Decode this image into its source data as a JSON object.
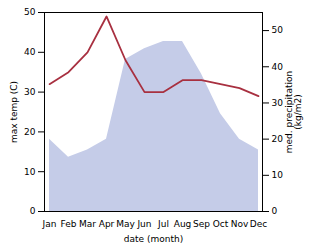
{
  "chart_data": {
    "type": "line",
    "xlabel": "date (month)",
    "ylabel": "max temp (C)",
    "y2label": "med. precipitation\n(kg/m2)",
    "categories": [
      "Jan",
      "Feb",
      "Mar",
      "Apr",
      "May",
      "Jun",
      "Jul",
      "Aug",
      "Sep",
      "Oct",
      "Nov",
      "Dec"
    ],
    "series": [
      {
        "type": "area",
        "axis": "y2",
        "color": "#c5cce8",
        "values": [
          20,
          15,
          17,
          20,
          42,
          45,
          47,
          47,
          38,
          27,
          20,
          17
        ]
      },
      {
        "type": "line",
        "color": "#a83040",
        "values": [
          32,
          35,
          40,
          49,
          38,
          30,
          30,
          33,
          33,
          32,
          31,
          29
        ]
      }
    ],
    "ylim": [
      0,
      50
    ],
    "yticks": [
      0,
      10,
      20,
      30,
      40,
      50
    ],
    "y2lim": [
      0,
      55
    ],
    "y2ticks": [
      0,
      10,
      20,
      30,
      40,
      50
    ]
  }
}
